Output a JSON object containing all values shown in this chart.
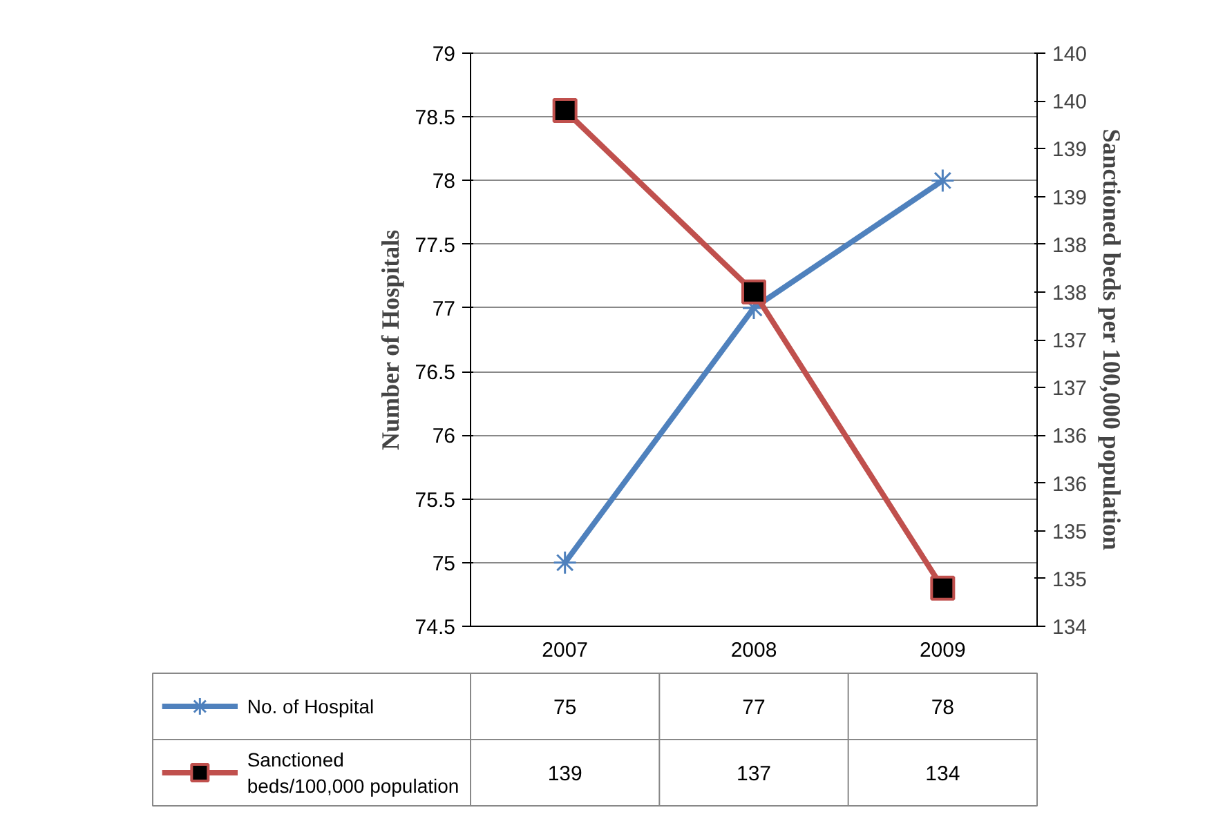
{
  "chart_data": {
    "type": "line",
    "ylabel": "Number of Hospitals",
    "y2label": "Sanctioned beds per 100,000 population",
    "categories": [
      "2007",
      "2008",
      "2009"
    ],
    "ylim": [
      74.5,
      79
    ],
    "yticks": [
      74.5,
      75,
      75.5,
      76,
      76.5,
      77,
      77.5,
      78,
      78.5,
      79
    ],
    "y2lim": [
      134,
      140
    ],
    "y2ticks": [
      {
        "value": 134,
        "label": "134"
      },
      {
        "value": 134.5,
        "label": "135"
      },
      {
        "value": 135,
        "label": "135"
      },
      {
        "value": 135.5,
        "label": "136"
      },
      {
        "value": 136,
        "label": "136"
      },
      {
        "value": 136.5,
        "label": "137"
      },
      {
        "value": 137,
        "label": "137"
      },
      {
        "value": 137.5,
        "label": "138"
      },
      {
        "value": 138,
        "label": "138"
      },
      {
        "value": 138.5,
        "label": "139"
      },
      {
        "value": 139,
        "label": "139"
      },
      {
        "value": 139.5,
        "label": "140"
      },
      {
        "value": 140,
        "label": "140"
      }
    ],
    "grid": "y",
    "legend": "bottom",
    "line_style": "solid",
    "series": [
      {
        "name": "No. of Hospital",
        "color": "#4f81bd",
        "marker": "cross",
        "values": [
          75,
          77,
          78
        ],
        "value_labels": [
          "75",
          "77",
          "78"
        ]
      },
      {
        "name": "Sanctioned beds/100,000 population",
        "color": "#c0504d",
        "marker": "square",
        "axis": "y2",
        "values": [
          139.4,
          137.5,
          134.4
        ],
        "value_labels": [
          "139",
          "137",
          "134"
        ]
      }
    ]
  }
}
